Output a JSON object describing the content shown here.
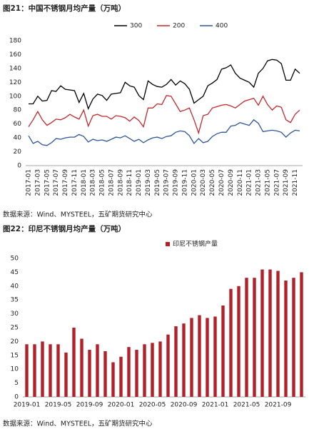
{
  "chart_data": [
    {
      "type": "line",
      "title": "图21：中国不锈钢月均产量（万吨）",
      "source": "数据来源：Wind、MYSTEEL，五矿期货研究中心",
      "categories": [
        "2017-01",
        null,
        "2017-03",
        null,
        "2017-05",
        null,
        "2017-07",
        null,
        "2017-09",
        null,
        "2017-11",
        null,
        "2018-01",
        null,
        "2018-03",
        null,
        "2018-05",
        null,
        "2018-07",
        null,
        "2018-09",
        null,
        "2018-11",
        null,
        "2019-01",
        null,
        "2019-03",
        null,
        "2019-05",
        null,
        "2019-07",
        null,
        "2019-09",
        null,
        "2019-11",
        null,
        "2020-01",
        null,
        "2020-03",
        null,
        "2020-05",
        null,
        "2020-07",
        null,
        "2020-09",
        null,
        "2020-11",
        null,
        "2021-01",
        null,
        "2021-03",
        null,
        "2021-05",
        null,
        "2021-07",
        null,
        "2021-09",
        null,
        "2021-11",
        null
      ],
      "series": [
        {
          "name": "300",
          "color": "#000000",
          "values": [
            89,
            89,
            100,
            93,
            94,
            108,
            107,
            115,
            110,
            109,
            108,
            91,
            104,
            82,
            96,
            103,
            101,
            94,
            103,
            104,
            105,
            120,
            115,
            113,
            101,
            95,
            122,
            117,
            114,
            113,
            117,
            124,
            116,
            122,
            118,
            110,
            90,
            95,
            100,
            115,
            119,
            124,
            139,
            141,
            145,
            133,
            126,
            123,
            120,
            113,
            133,
            140,
            151,
            153,
            152,
            147,
            123,
            123,
            139,
            133
          ]
        },
        {
          "name": "200",
          "color": "#c0282d",
          "values": [
            56,
            66,
            78,
            66,
            58,
            62,
            67,
            66,
            69,
            74,
            70,
            67,
            80,
            57,
            72,
            74,
            71,
            71,
            67,
            72,
            71,
            69,
            64,
            70,
            65,
            56,
            83,
            83,
            89,
            88,
            101,
            100,
            89,
            78,
            80,
            83,
            66,
            47,
            72,
            74,
            83,
            85,
            87,
            88,
            86,
            83,
            88,
            93,
            95,
            97,
            87,
            100,
            88,
            80,
            86,
            84,
            66,
            62,
            74,
            80
          ]
        },
        {
          "name": "400",
          "color": "#2f5597",
          "values": [
            43,
            32,
            35,
            30,
            29,
            33,
            39,
            38,
            40,
            41,
            41,
            45,
            42,
            34,
            38,
            36,
            37,
            35,
            38,
            41,
            40,
            43,
            39,
            35,
            38,
            33,
            37,
            40,
            41,
            39,
            42,
            43,
            48,
            50,
            49,
            43,
            32,
            39,
            33,
            35,
            42,
            46,
            48,
            48,
            57,
            58,
            62,
            60,
            58,
            66,
            61,
            49,
            50,
            51,
            50,
            48,
            41,
            47,
            51,
            50
          ]
        }
      ],
      "ylim": [
        0,
        180
      ],
      "yticks": [
        0,
        20,
        40,
        60,
        80,
        100,
        120,
        140,
        160,
        180
      ],
      "grid": false,
      "legend": "top"
    },
    {
      "type": "bar",
      "title": "图22：印尼不锈钢月均产量（万吨）",
      "source": "数据来源：Wind、MYSTEEL，五矿期货研究中心",
      "categories": [
        "2019-01",
        null,
        null,
        null,
        "2019-05",
        null,
        null,
        null,
        "2019-09",
        null,
        null,
        null,
        "2020-01",
        null,
        null,
        null,
        "2020-05",
        null,
        null,
        null,
        "2020-09",
        null,
        null,
        null,
        "2021-01",
        null,
        null,
        null,
        "2021-05",
        null,
        null,
        null,
        "2021-09",
        null,
        null,
        null
      ],
      "series": [
        {
          "name": "印尼不锈钢产量",
          "color": "#b3202a",
          "values": [
            19,
            19,
            20,
            19,
            19,
            16,
            25,
            21,
            17,
            19,
            16.5,
            12.5,
            14.5,
            18,
            17,
            19,
            19.5,
            20,
            22.5,
            25.5,
            26.5,
            28.5,
            29.5,
            28.5,
            29,
            33,
            39,
            40,
            43,
            43,
            46,
            46,
            45.5,
            42,
            43,
            45
          ]
        }
      ],
      "ylim": [
        0,
        50
      ],
      "yticks": [
        0,
        5,
        10,
        15,
        20,
        25,
        30,
        35,
        40,
        45,
        50
      ],
      "grid": false,
      "legend": "top"
    }
  ]
}
